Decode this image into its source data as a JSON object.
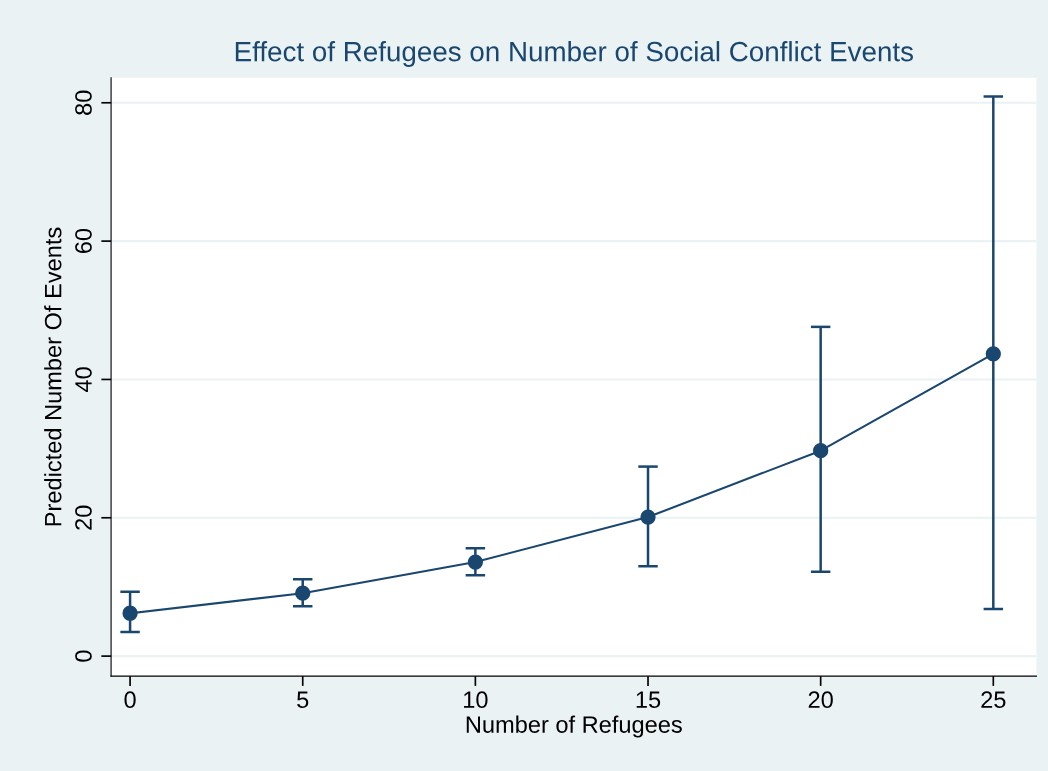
{
  "chart_data": {
    "type": "line",
    "title": "Effect of Refugees on Number of Social Conflict Events",
    "xlabel": "Number of Refugees",
    "ylabel": "Predicted Number Of Events",
    "x": [
      0,
      5,
      10,
      15,
      20,
      25
    ],
    "series": [
      {
        "color": "#1a476f",
        "values": [
          6.2,
          9.1,
          13.6,
          20.1,
          29.7,
          43.7
        ],
        "errors": [
          [
            3.5,
            9.3
          ],
          [
            7.2,
            11.1
          ],
          [
            11.7,
            15.6
          ],
          [
            13.0,
            27.4
          ],
          [
            12.2,
            47.6
          ],
          [
            6.8,
            80.9
          ]
        ]
      }
    ],
    "xlim": [
      -0.55,
      26.25
    ],
    "ylim": [
      -2.9,
      83.6
    ],
    "xticks": [
      0,
      5,
      10,
      15,
      20,
      25
    ],
    "yticks": [
      0,
      20,
      40,
      60,
      80
    ],
    "grid": "y",
    "marker": "circle",
    "line_style": "solid"
  }
}
